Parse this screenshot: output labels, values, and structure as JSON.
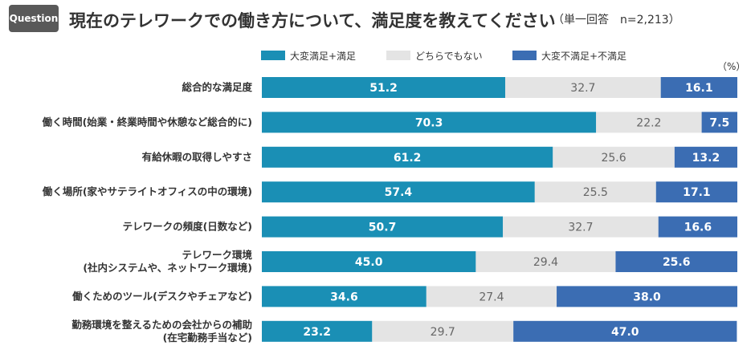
{
  "question_badge": "Question",
  "title": "現在のテレワークでの働き方について、満足度を教えてください",
  "respondents": "（単一回答　n=2,213）",
  "unit": "（%）",
  "colors": {
    "satisfied": "#1a8fb5",
    "neutral": "#e4e4e4",
    "dissatisfied": "#3b6db3",
    "badge": "#595959"
  },
  "chart_data": {
    "type": "bar",
    "orientation": "horizontal",
    "stacked": true,
    "normalized_percent": true,
    "xlim": [
      0,
      100
    ],
    "legend_position": "top",
    "legend": [
      "大変満足+満足",
      "どちらでもない",
      "大変不満足+不満足"
    ],
    "categories": [
      [
        "総合的な満足度"
      ],
      [
        "働く時間(始業・終業時間や休憩など総合的に)"
      ],
      [
        "有給休暇の取得しやすさ"
      ],
      [
        "働く場所(家やサテライトオフィスの中の環境)"
      ],
      [
        "テレワークの頻度(日数など)"
      ],
      [
        "テレワーク環境",
        "(社内システムや、ネットワーク環境)"
      ],
      [
        "働くためのツール(デスクやチェアなど)"
      ],
      [
        "勤務環境を整えるための会社からの補助",
        "(在宅勤務手当など)"
      ]
    ],
    "series": [
      {
        "name": "大変満足+満足",
        "values": [
          51.2,
          70.3,
          61.2,
          57.4,
          50.7,
          45.0,
          34.6,
          23.2
        ]
      },
      {
        "name": "どちらでもない",
        "values": [
          32.7,
          22.2,
          25.6,
          25.5,
          32.7,
          29.4,
          27.4,
          29.7
        ]
      },
      {
        "name": "大変不満足+不満足",
        "values": [
          16.1,
          7.5,
          13.2,
          17.1,
          16.6,
          25.6,
          38.0,
          47.0
        ]
      }
    ]
  }
}
